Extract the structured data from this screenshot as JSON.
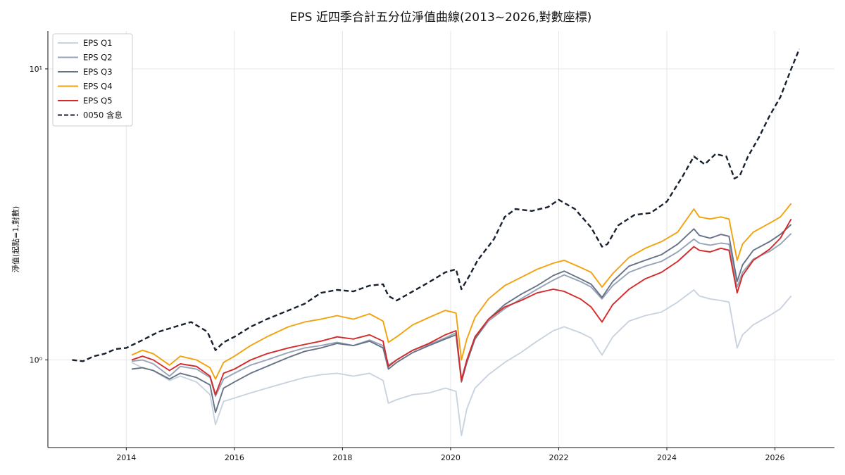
{
  "chart_data": {
    "type": "line",
    "title": "EPS 近四季合計五分位淨值曲線(2013~2026,對數座標)",
    "xlabel": "",
    "ylabel": "淨值(起點=1,對數)",
    "y_scale": "log",
    "ylim": [
      0.5,
      13.5
    ],
    "xlim": [
      2012.55,
      2027.1
    ],
    "x_ticks": [
      2014,
      2016,
      2018,
      2020,
      2022,
      2024,
      2026
    ],
    "y_ticks": [
      {
        "value": 1,
        "label": "10⁰"
      },
      {
        "value": 10,
        "label": "10¹"
      }
    ],
    "grid": true,
    "legend_position": "top-left",
    "series": [
      {
        "name": "EPS Q1",
        "color": "#c9d3e0",
        "dash": "solid",
        "x": [
          2014.1,
          2014.3,
          2014.5,
          2014.8,
          2015.0,
          2015.3,
          2015.55,
          2015.65,
          2015.8,
          2016.0,
          2016.3,
          2016.6,
          2017.0,
          2017.3,
          2017.6,
          2017.9,
          2018.2,
          2018.5,
          2018.75,
          2018.85,
          2019.0,
          2019.3,
          2019.6,
          2019.9,
          2020.1,
          2020.2,
          2020.3,
          2020.45,
          2020.7,
          2021.0,
          2021.3,
          2021.6,
          2021.9,
          2022.1,
          2022.4,
          2022.6,
          2022.8,
          2023.0,
          2023.3,
          2023.6,
          2023.9,
          2024.2,
          2024.5,
          2024.6,
          2024.8,
          2025.0,
          2025.15,
          2025.3,
          2025.4,
          2025.6,
          2025.9,
          2026.1,
          2026.3
        ],
        "values": [
          0.98,
          0.94,
          0.92,
          0.85,
          0.88,
          0.84,
          0.76,
          0.6,
          0.72,
          0.74,
          0.77,
          0.8,
          0.84,
          0.87,
          0.89,
          0.9,
          0.88,
          0.9,
          0.85,
          0.71,
          0.73,
          0.76,
          0.77,
          0.8,
          0.78,
          0.55,
          0.68,
          0.8,
          0.89,
          0.98,
          1.06,
          1.16,
          1.26,
          1.3,
          1.24,
          1.19,
          1.04,
          1.2,
          1.36,
          1.42,
          1.46,
          1.58,
          1.74,
          1.66,
          1.62,
          1.6,
          1.58,
          1.1,
          1.22,
          1.32,
          1.42,
          1.5,
          1.66
        ]
      },
      {
        "name": "EPS Q2",
        "color": "#97a3b6",
        "dash": "solid",
        "x": [
          2014.1,
          2014.3,
          2014.5,
          2014.8,
          2015.0,
          2015.3,
          2015.55,
          2015.65,
          2015.8,
          2016.0,
          2016.3,
          2016.6,
          2017.0,
          2017.3,
          2017.6,
          2017.9,
          2018.2,
          2018.5,
          2018.75,
          2018.85,
          2019.0,
          2019.3,
          2019.6,
          2019.9,
          2020.1,
          2020.2,
          2020.3,
          2020.45,
          2020.7,
          2021.0,
          2021.3,
          2021.6,
          2021.9,
          2022.1,
          2022.4,
          2022.6,
          2022.8,
          2023.0,
          2023.3,
          2023.6,
          2023.9,
          2024.2,
          2024.5,
          2024.6,
          2024.8,
          2025.0,
          2025.15,
          2025.3,
          2025.4,
          2025.6,
          2025.9,
          2026.1,
          2026.3
        ],
        "values": [
          0.99,
          1.0,
          0.97,
          0.88,
          0.95,
          0.93,
          0.87,
          0.75,
          0.86,
          0.9,
          0.96,
          1.0,
          1.06,
          1.1,
          1.12,
          1.15,
          1.12,
          1.17,
          1.12,
          0.96,
          1.0,
          1.08,
          1.13,
          1.19,
          1.24,
          0.86,
          1.0,
          1.18,
          1.36,
          1.5,
          1.62,
          1.75,
          1.88,
          1.96,
          1.86,
          1.78,
          1.62,
          1.8,
          2.0,
          2.1,
          2.18,
          2.35,
          2.6,
          2.52,
          2.48,
          2.52,
          2.5,
          1.78,
          2.0,
          2.22,
          2.36,
          2.5,
          2.72
        ]
      },
      {
        "name": "EPS Q3",
        "color": "#667386",
        "dash": "solid",
        "x": [
          2014.1,
          2014.3,
          2014.5,
          2014.8,
          2015.0,
          2015.3,
          2015.55,
          2015.65,
          2015.8,
          2016.0,
          2016.3,
          2016.6,
          2017.0,
          2017.3,
          2017.6,
          2017.9,
          2018.2,
          2018.5,
          2018.75,
          2018.85,
          2019.0,
          2019.3,
          2019.6,
          2019.9,
          2020.1,
          2020.2,
          2020.3,
          2020.45,
          2020.7,
          2021.0,
          2021.3,
          2021.6,
          2021.9,
          2022.1,
          2022.4,
          2022.6,
          2022.8,
          2023.0,
          2023.3,
          2023.6,
          2023.9,
          2024.2,
          2024.5,
          2024.6,
          2024.8,
          2025.0,
          2025.15,
          2025.3,
          2025.4,
          2025.6,
          2025.9,
          2026.1,
          2026.3
        ],
        "values": [
          0.93,
          0.94,
          0.92,
          0.86,
          0.9,
          0.87,
          0.82,
          0.66,
          0.8,
          0.84,
          0.9,
          0.95,
          1.02,
          1.07,
          1.1,
          1.14,
          1.12,
          1.16,
          1.1,
          0.93,
          0.98,
          1.06,
          1.12,
          1.18,
          1.22,
          0.84,
          0.98,
          1.18,
          1.38,
          1.55,
          1.68,
          1.8,
          1.95,
          2.02,
          1.9,
          1.82,
          1.64,
          1.86,
          2.1,
          2.2,
          2.3,
          2.5,
          2.82,
          2.68,
          2.62,
          2.7,
          2.66,
          1.86,
          2.12,
          2.38,
          2.55,
          2.7,
          2.92
        ]
      },
      {
        "name": "EPS Q4",
        "color": "#f2a20e",
        "dash": "solid",
        "x": [
          2014.1,
          2014.3,
          2014.5,
          2014.8,
          2015.0,
          2015.3,
          2015.55,
          2015.65,
          2015.8,
          2016.0,
          2016.3,
          2016.6,
          2017.0,
          2017.3,
          2017.6,
          2017.9,
          2018.2,
          2018.5,
          2018.75,
          2018.85,
          2019.0,
          2019.3,
          2019.6,
          2019.9,
          2020.1,
          2020.2,
          2020.3,
          2020.45,
          2020.7,
          2021.0,
          2021.3,
          2021.6,
          2021.9,
          2022.1,
          2022.4,
          2022.6,
          2022.8,
          2023.0,
          2023.3,
          2023.6,
          2023.9,
          2024.2,
          2024.5,
          2024.6,
          2024.8,
          2025.0,
          2025.15,
          2025.3,
          2025.4,
          2025.6,
          2025.9,
          2026.1,
          2026.3
        ],
        "values": [
          1.04,
          1.08,
          1.05,
          0.96,
          1.03,
          1.0,
          0.94,
          0.86,
          0.98,
          1.03,
          1.12,
          1.2,
          1.3,
          1.35,
          1.38,
          1.42,
          1.38,
          1.44,
          1.36,
          1.15,
          1.2,
          1.32,
          1.4,
          1.48,
          1.45,
          1.0,
          1.18,
          1.4,
          1.62,
          1.8,
          1.92,
          2.05,
          2.15,
          2.2,
          2.08,
          2.0,
          1.78,
          1.98,
          2.25,
          2.42,
          2.55,
          2.75,
          3.3,
          3.1,
          3.05,
          3.1,
          3.05,
          2.2,
          2.5,
          2.75,
          2.95,
          3.1,
          3.45
        ]
      },
      {
        "name": "EPS Q5",
        "color": "#d42a2a",
        "dash": "solid",
        "x": [
          2014.1,
          2014.3,
          2014.5,
          2014.8,
          2015.0,
          2015.3,
          2015.55,
          2015.65,
          2015.8,
          2016.0,
          2016.3,
          2016.6,
          2017.0,
          2017.3,
          2017.6,
          2017.9,
          2018.2,
          2018.5,
          2018.75,
          2018.85,
          2019.0,
          2019.3,
          2019.6,
          2019.9,
          2020.1,
          2020.2,
          2020.3,
          2020.45,
          2020.7,
          2021.0,
          2021.3,
          2021.6,
          2021.9,
          2022.1,
          2022.4,
          2022.6,
          2022.8,
          2023.0,
          2023.3,
          2023.6,
          2023.9,
          2024.2,
          2024.5,
          2024.6,
          2024.8,
          2025.0,
          2025.15,
          2025.3,
          2025.4,
          2025.6,
          2025.9,
          2026.1,
          2026.3
        ],
        "values": [
          1.0,
          1.03,
          1.0,
          0.92,
          0.97,
          0.95,
          0.88,
          0.76,
          0.9,
          0.93,
          1.0,
          1.05,
          1.1,
          1.13,
          1.16,
          1.2,
          1.18,
          1.22,
          1.16,
          0.95,
          1.0,
          1.08,
          1.14,
          1.22,
          1.26,
          0.85,
          1.0,
          1.2,
          1.38,
          1.52,
          1.6,
          1.7,
          1.75,
          1.72,
          1.62,
          1.52,
          1.35,
          1.55,
          1.75,
          1.9,
          2.0,
          2.18,
          2.45,
          2.38,
          2.35,
          2.42,
          2.38,
          1.7,
          1.95,
          2.2,
          2.4,
          2.62,
          3.05
        ]
      },
      {
        "name": "0050 含息",
        "color": "#16202e",
        "dash": "dashed",
        "x": [
          2013.0,
          2013.2,
          2013.4,
          2013.6,
          2013.8,
          2014.0,
          2014.3,
          2014.6,
          2014.9,
          2015.2,
          2015.5,
          2015.65,
          2015.8,
          2016.0,
          2016.3,
          2016.6,
          2017.0,
          2017.3,
          2017.6,
          2017.9,
          2018.2,
          2018.5,
          2018.75,
          2018.85,
          2019.0,
          2019.3,
          2019.6,
          2019.9,
          2020.1,
          2020.2,
          2020.35,
          2020.5,
          2020.8,
          2021.0,
          2021.2,
          2021.5,
          2021.8,
          2022.0,
          2022.3,
          2022.6,
          2022.8,
          2022.9,
          2023.1,
          2023.4,
          2023.7,
          2024.0,
          2024.3,
          2024.5,
          2024.7,
          2024.9,
          2025.1,
          2025.25,
          2025.35,
          2025.5,
          2025.7,
          2025.9,
          2026.1,
          2026.3,
          2026.45
        ],
        "values": [
          1.0,
          0.99,
          1.03,
          1.05,
          1.09,
          1.1,
          1.17,
          1.25,
          1.3,
          1.35,
          1.25,
          1.08,
          1.15,
          1.2,
          1.3,
          1.38,
          1.48,
          1.56,
          1.7,
          1.74,
          1.72,
          1.8,
          1.82,
          1.66,
          1.6,
          1.72,
          1.85,
          2.0,
          2.05,
          1.75,
          1.95,
          2.2,
          2.6,
          3.1,
          3.3,
          3.25,
          3.35,
          3.55,
          3.3,
          2.85,
          2.45,
          2.5,
          2.9,
          3.15,
          3.2,
          3.5,
          4.3,
          5.0,
          4.7,
          5.1,
          5.0,
          4.2,
          4.3,
          5.0,
          5.8,
          6.9,
          8.0,
          10.0,
          11.7
        ]
      }
    ]
  }
}
